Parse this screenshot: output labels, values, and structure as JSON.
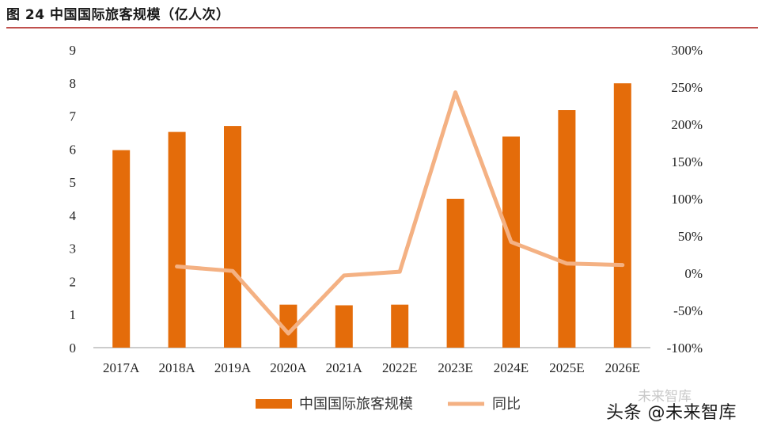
{
  "chart_data": {
    "type": "bar",
    "title": "图 24 中国国际旅客规模（亿人次）",
    "categories": [
      "2017A",
      "2018A",
      "2019A",
      "2020A",
      "2021A",
      "2022E",
      "2023E",
      "2024E",
      "2025E",
      "2026E"
    ],
    "series": [
      {
        "name": "中国国际旅客规模",
        "type": "bar",
        "axis": "left",
        "color": "#E46C0A",
        "values": [
          5.97,
          6.52,
          6.7,
          1.3,
          1.28,
          1.3,
          4.5,
          6.38,
          7.18,
          7.99
        ]
      },
      {
        "name": "同比",
        "type": "line",
        "axis": "right",
        "color": "#F4B183",
        "values": [
          null,
          9,
          3,
          -81,
          -3,
          2,
          243,
          42,
          13,
          11
        ]
      }
    ],
    "y_left": {
      "min": 0,
      "max": 9,
      "ticks": [
        "0",
        "1",
        "2",
        "3",
        "4",
        "5",
        "6",
        "7",
        "8",
        "9"
      ]
    },
    "y_right": {
      "min": -100,
      "max": 300,
      "ticks": [
        "-100%",
        "-50%",
        "0%",
        "50%",
        "100%",
        "150%",
        "200%",
        "250%",
        "300%"
      ]
    },
    "grid": false,
    "legend_position": "bottom"
  },
  "watermark": {
    "text": "头条 @未来智库",
    "logo_text": "未来智库"
  }
}
